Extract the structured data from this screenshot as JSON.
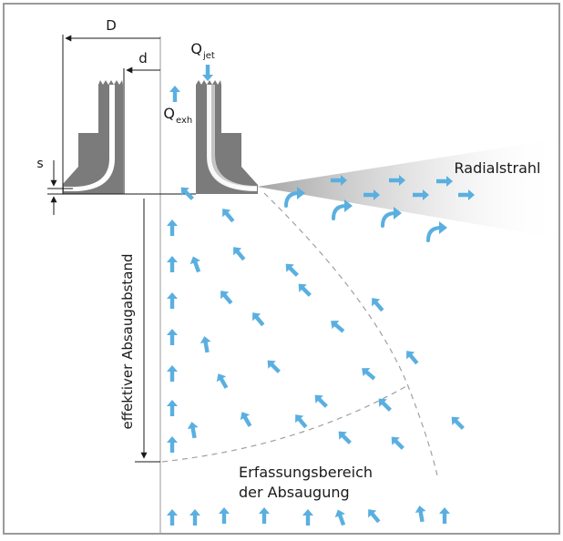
{
  "labels": {
    "D": "D",
    "d": "d",
    "s": "s",
    "q_jet_main": "Q",
    "q_jet_sub": "jet",
    "q_exh_main": "Q",
    "q_exh_sub": "exh",
    "radial_jet": "Radialstrahl",
    "effective_distance": "effektiver Absaugabstand",
    "capture_area_line1": "Erfassungsbereich",
    "capture_area_line2": "der Absaugung"
  },
  "colors": {
    "frame": "#9a9a9a",
    "nozzle_body": "#7b7b7b",
    "nozzle_channel": "#ffffff",
    "flow_arrow": "#5aafe0",
    "dimension_line": "#1a1a1a",
    "boundary_dash": "#a0a0a0",
    "axis_line": "#9a9a9a"
  },
  "icons": {
    "straight_arrow": "flow-arrow-icon",
    "curved_arrow": "curved-flow-arrow-icon",
    "dimension_arrow": "dimension-arrow-icon"
  }
}
